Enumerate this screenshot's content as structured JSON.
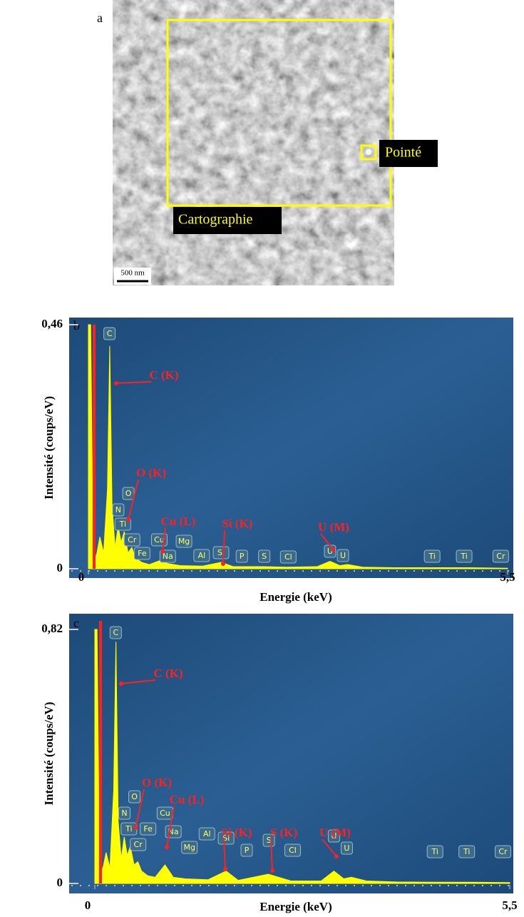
{
  "panel_a": {
    "label": "a",
    "map_label": "Cartographie",
    "point_label": "Pointé",
    "scale_bar": "500 nm"
  },
  "chart_data": [
    {
      "type": "area",
      "panel": "b",
      "xlabel": "Energie (keV)",
      "ylabel": "Intensité (coups/eV)",
      "xlim": [
        0,
        5.5
      ],
      "ylim": [
        0,
        0.46
      ],
      "xticks": [
        0,
        {
          "value": 5.5,
          "label": "5,5"
        }
      ],
      "yticks": [
        0,
        {
          "value": 0.46,
          "label": "0,46"
        }
      ],
      "x": [
        0,
        0.03,
        0.06,
        0.1,
        0.15,
        0.2,
        0.25,
        0.28,
        0.31,
        0.35,
        0.39,
        0.43,
        0.47,
        0.52,
        0.57,
        0.62,
        0.7,
        0.8,
        0.93,
        1.04,
        1.2,
        1.5,
        1.74,
        1.9,
        2.3,
        2.6,
        3.0,
        3.17,
        3.3,
        3.4,
        3.6,
        4.0,
        4.5,
        5.0,
        5.5
      ],
      "series": [
        {
          "color": "#ffff00",
          "values": [
            0.46,
            0.46,
            0.05,
            0.02,
            0.06,
            0.03,
            0.15,
            0.42,
            0.12,
            0.04,
            0.08,
            0.05,
            0.07,
            0.03,
            0.04,
            0.02,
            0.012,
            0.008,
            0.015,
            0.01,
            0.006,
            0.005,
            0.012,
            0.004,
            0.004,
            0.003,
            0.004,
            0.014,
            0.006,
            0.008,
            0.003,
            0.002,
            0.002,
            0.002,
            0.001
          ]
        }
      ],
      "markers": [
        {
          "label": "C",
          "x": 0.277
        },
        {
          "label": "O",
          "x": 0.525
        },
        {
          "label": "N",
          "x": 0.392
        },
        {
          "label": "Ti",
          "x": 0.452
        },
        {
          "label": "Cr",
          "x": 0.573
        },
        {
          "label": "Cu",
          "x": 0.93
        },
        {
          "label": "Mg",
          "x": 1.254
        },
        {
          "label": "Fe",
          "x": 0.705
        },
        {
          "label": "Na",
          "x": 1.041
        },
        {
          "label": "Al",
          "x": 1.486
        },
        {
          "label": "Si",
          "x": 1.74
        },
        {
          "label": "P",
          "x": 2.013
        },
        {
          "label": "S",
          "x": 2.307
        },
        {
          "label": "Cl",
          "x": 2.622
        },
        {
          "label": "U",
          "x": 3.17
        },
        {
          "label": "U",
          "x": 3.34
        },
        {
          "label": "Ti",
          "x": 4.51
        },
        {
          "label": "Ti",
          "x": 4.93
        },
        {
          "label": "Cr",
          "x": 5.41
        }
      ],
      "annotations": [
        "C (K)",
        "O (K)",
        "Cu (L)",
        "Si (K)",
        "U (M)"
      ]
    },
    {
      "type": "area",
      "panel": "c",
      "xlabel": "Energie (keV)",
      "ylabel": "Intensité (coups/eV)",
      "xlim": [
        0,
        5.5
      ],
      "ylim": [
        0,
        0.82
      ],
      "xticks": [
        0,
        {
          "value": 5.5,
          "label": "5,5"
        }
      ],
      "yticks": [
        0,
        {
          "value": 0.82,
          "label": "0,82"
        }
      ],
      "x": [
        0,
        0.03,
        0.06,
        0.1,
        0.15,
        0.2,
        0.25,
        0.28,
        0.31,
        0.35,
        0.39,
        0.43,
        0.47,
        0.52,
        0.57,
        0.62,
        0.7,
        0.8,
        0.93,
        1.04,
        1.2,
        1.5,
        1.74,
        1.9,
        2.3,
        2.6,
        3.0,
        3.17,
        3.3,
        3.4,
        3.6,
        4.0,
        4.5,
        5.0,
        5.5
      ],
      "series": [
        {
          "color": "#ffff00",
          "values": [
            0.82,
            0.82,
            0.1,
            0.04,
            0.1,
            0.05,
            0.3,
            0.78,
            0.2,
            0.08,
            0.15,
            0.09,
            0.12,
            0.06,
            0.07,
            0.04,
            0.025,
            0.02,
            0.06,
            0.02,
            0.015,
            0.012,
            0.04,
            0.01,
            0.03,
            0.008,
            0.008,
            0.04,
            0.015,
            0.02,
            0.008,
            0.005,
            0.004,
            0.004,
            0.003
          ]
        }
      ],
      "markers": [
        {
          "label": "C",
          "x": 0.277
        },
        {
          "label": "O",
          "x": 0.525
        },
        {
          "label": "N",
          "x": 0.392
        },
        {
          "label": "Ti",
          "x": 0.452
        },
        {
          "label": "Cu",
          "x": 0.93
        },
        {
          "label": "Fe",
          "x": 0.705
        },
        {
          "label": "Cr",
          "x": 0.573
        },
        {
          "label": "Na",
          "x": 1.041
        },
        {
          "label": "Al",
          "x": 1.486
        },
        {
          "label": "Mg",
          "x": 1.254
        },
        {
          "label": "Si",
          "x": 1.74
        },
        {
          "label": "P",
          "x": 2.013
        },
        {
          "label": "S",
          "x": 2.307
        },
        {
          "label": "Cl",
          "x": 2.622
        },
        {
          "label": "U",
          "x": 3.17
        },
        {
          "label": "U",
          "x": 3.34
        },
        {
          "label": "Ti",
          "x": 4.51
        },
        {
          "label": "Ti",
          "x": 4.93
        },
        {
          "label": "Cr",
          "x": 5.41
        }
      ],
      "annotations": [
        "C (K)",
        "O (K)",
        "Cu (L)",
        "Si (K)",
        "S (K)",
        "U (M)"
      ]
    }
  ]
}
